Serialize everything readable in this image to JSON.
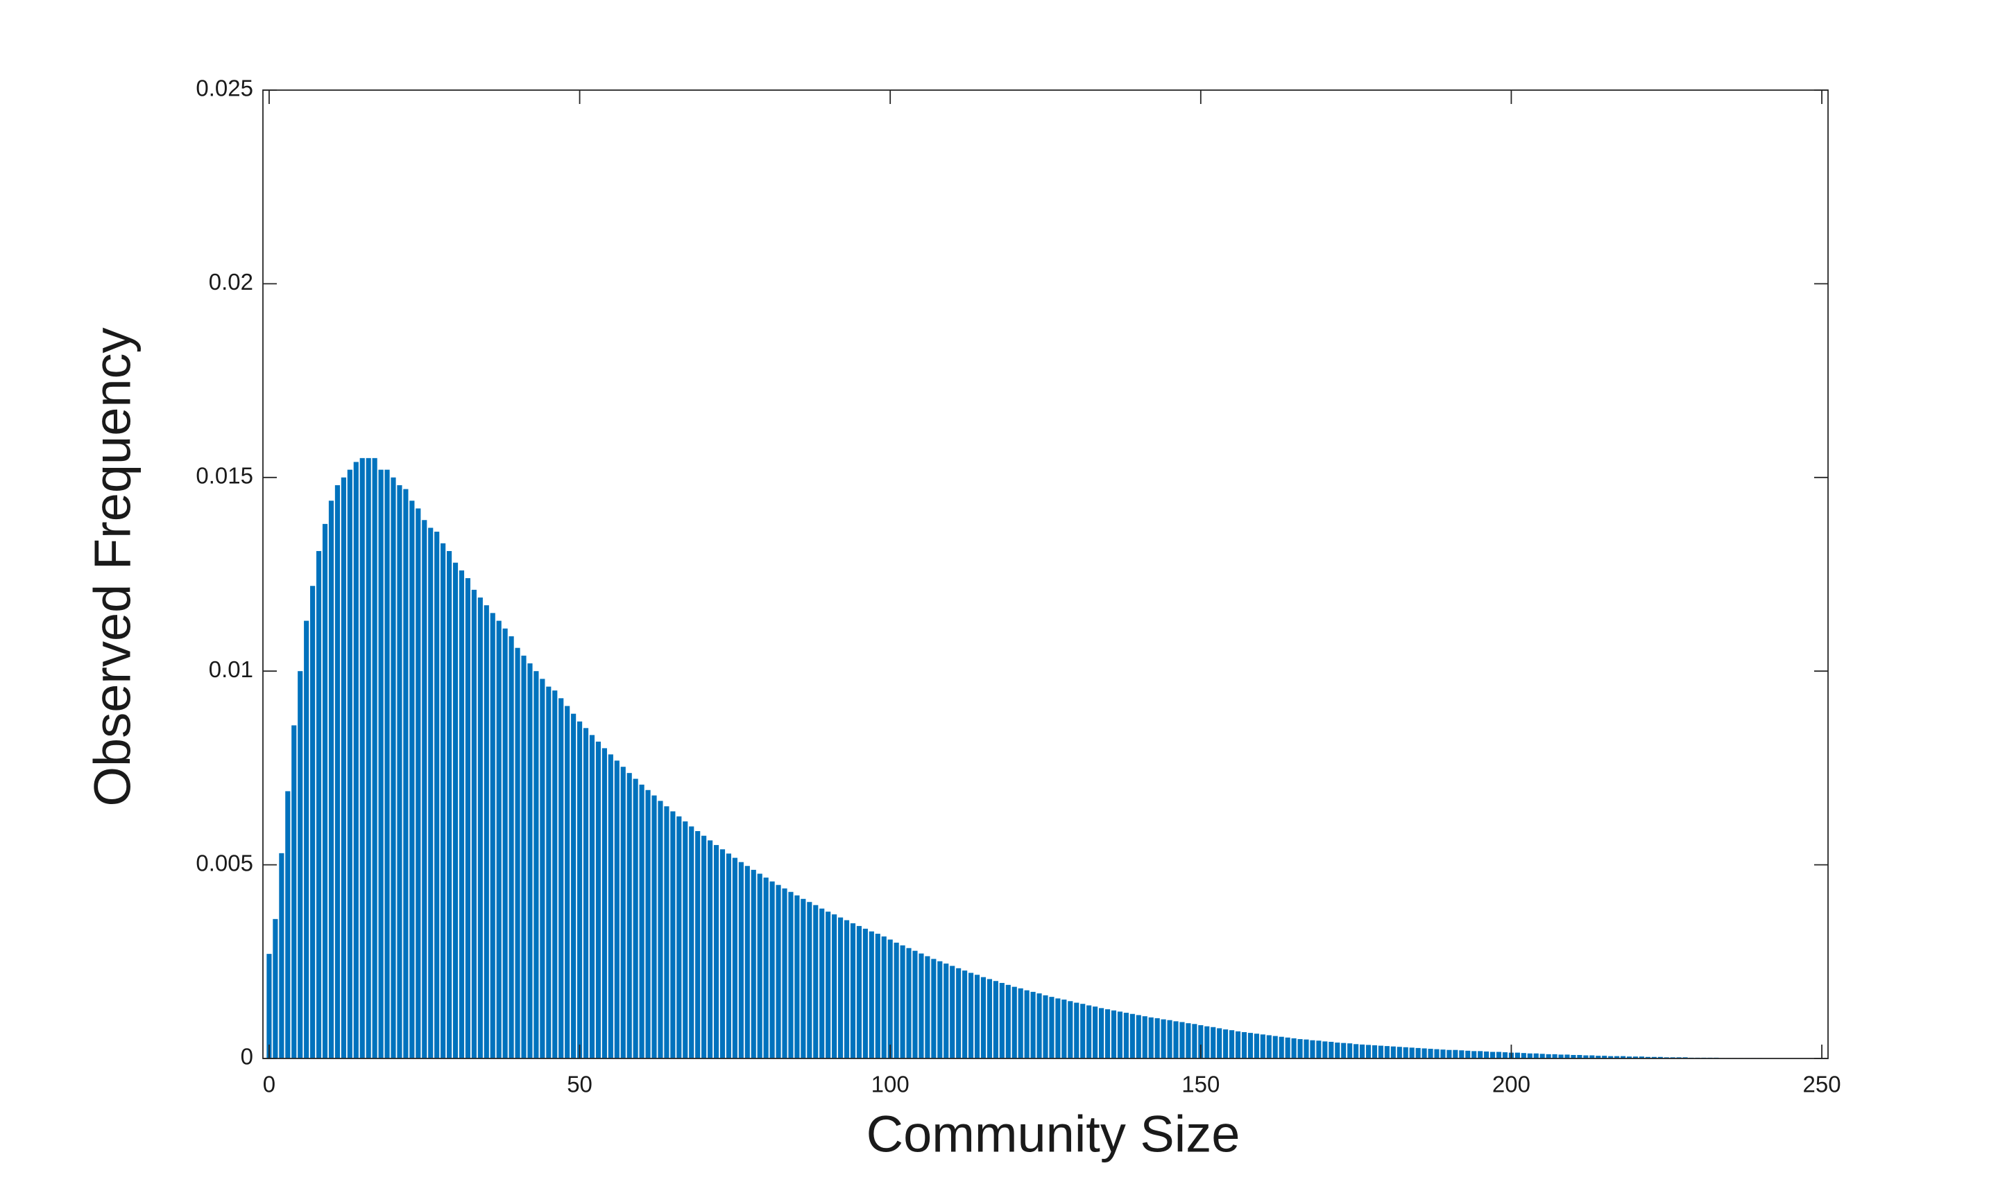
{
  "chart_data": {
    "type": "bar",
    "x_label": "Community Size",
    "y_label": "Observed Frequency",
    "color": "#0072bd",
    "xlim": [
      -1,
      251
    ],
    "ylim": [
      0,
      0.025
    ],
    "xticks": [
      0,
      50,
      100,
      150,
      200,
      250
    ],
    "yticks": [
      0,
      0.005,
      0.01,
      0.015,
      0.02,
      0.025
    ],
    "x": [
      0,
      1,
      2,
      3,
      4,
      5,
      6,
      7,
      8,
      9,
      10,
      11,
      12,
      13,
      14,
      15,
      16,
      17,
      18,
      19,
      20,
      21,
      22,
      23,
      24,
      25,
      26,
      27,
      28,
      29,
      30,
      31,
      32,
      33,
      34,
      35,
      36,
      37,
      38,
      39,
      40,
      41,
      42,
      43,
      44,
      45,
      46,
      47,
      48,
      49,
      50,
      51,
      52,
      53,
      54,
      55,
      56,
      57,
      58,
      59,
      60,
      61,
      62,
      63,
      64,
      65,
      66,
      67,
      68,
      69,
      70,
      71,
      72,
      73,
      74,
      75,
      76,
      77,
      78,
      79,
      80,
      81,
      82,
      83,
      84,
      85,
      86,
      87,
      88,
      89,
      90,
      91,
      92,
      93,
      94,
      95,
      96,
      97,
      98,
      99,
      100,
      101,
      102,
      103,
      104,
      105,
      106,
      107,
      108,
      109,
      110,
      111,
      112,
      113,
      114,
      115,
      116,
      117,
      118,
      119,
      120,
      121,
      122,
      123,
      124,
      125,
      126,
      127,
      128,
      129,
      130,
      131,
      132,
      133,
      134,
      135,
      136,
      137,
      138,
      139,
      140,
      141,
      142,
      143,
      144,
      145,
      146,
      147,
      148,
      149,
      150,
      151,
      152,
      153,
      154,
      155,
      156,
      157,
      158,
      159,
      160,
      161,
      162,
      163,
      164,
      165,
      166,
      167,
      168,
      169,
      170,
      171,
      172,
      173,
      174,
      175,
      176,
      177,
      178,
      179,
      180,
      181,
      182,
      183,
      184,
      185,
      186,
      187,
      188,
      189,
      190,
      191,
      192,
      193,
      194,
      195,
      196,
      197,
      198,
      199,
      200,
      201,
      202,
      203,
      204,
      205,
      206,
      207,
      208,
      209,
      210,
      211,
      212,
      213,
      214,
      215,
      216,
      217,
      218,
      219,
      220,
      221,
      222,
      223,
      224,
      225,
      226,
      227,
      228,
      229,
      230,
      231,
      232,
      233,
      234,
      235,
      236,
      237,
      238,
      239,
      240
    ],
    "values": [
      0.0027,
      0.0036,
      0.0053,
      0.0069,
      0.0086,
      0.01,
      0.0113,
      0.0122,
      0.0131,
      0.0138,
      0.0144,
      0.0148,
      0.015,
      0.0152,
      0.0154,
      0.0155,
      0.0155,
      0.0155,
      0.0152,
      0.0152,
      0.015,
      0.0148,
      0.0147,
      0.0144,
      0.0142,
      0.0139,
      0.0137,
      0.0136,
      0.0133,
      0.0131,
      0.0128,
      0.0126,
      0.0124,
      0.0121,
      0.0119,
      0.0117,
      0.0115,
      0.0113,
      0.0111,
      0.0109,
      0.0106,
      0.0104,
      0.0102,
      0.01,
      0.0098,
      0.0096,
      0.0095,
      0.0093,
      0.0091,
      0.0089,
      0.0087,
      0.00853,
      0.00835,
      0.00818,
      0.00801,
      0.00785,
      0.00769,
      0.00753,
      0.00737,
      0.00722,
      0.00707,
      0.00693,
      0.00679,
      0.00665,
      0.00651,
      0.00638,
      0.00625,
      0.00612,
      0.00599,
      0.00587,
      0.00575,
      0.00563,
      0.00551,
      0.0054,
      0.00529,
      0.00518,
      0.00507,
      0.00497,
      0.00487,
      0.00477,
      0.00467,
      0.00457,
      0.00448,
      0.00439,
      0.0043,
      0.00421,
      0.00412,
      0.00404,
      0.00396,
      0.00387,
      0.00379,
      0.00372,
      0.00364,
      0.00357,
      0.00349,
      0.00342,
      0.00335,
      0.00328,
      0.00322,
      0.00315,
      0.00307,
      0.00299,
      0.00292,
      0.00285,
      0.00278,
      0.00271,
      0.00264,
      0.00257,
      0.00251,
      0.00245,
      0.00239,
      0.00233,
      0.00227,
      0.00221,
      0.00216,
      0.0021,
      0.00205,
      0.002,
      0.00195,
      0.0019,
      0.00185,
      0.00181,
      0.00176,
      0.00172,
      0.00168,
      0.00163,
      0.00159,
      0.00155,
      0.00152,
      0.00148,
      0.00144,
      0.00141,
      0.00137,
      0.00134,
      0.0013,
      0.00127,
      0.00124,
      0.00121,
      0.00118,
      0.00115,
      0.00112,
      0.00109,
      0.00106,
      0.00104,
      0.00101,
      0.00099,
      0.00096,
      0.00094,
      0.00091,
      0.00089,
      0.00086,
      0.00083,
      0.00081,
      0.00078,
      0.00075,
      0.00073,
      0.0007,
      0.00068,
      0.00066,
      0.00064,
      0.00062,
      0.0006,
      0.00058,
      0.00056,
      0.00054,
      0.00052,
      0.0005,
      0.00049,
      0.00047,
      0.00046,
      0.00044,
      0.00043,
      0.00041,
      0.0004,
      0.00039,
      0.00037,
      0.00036,
      0.00035,
      0.00034,
      0.00033,
      0.00032,
      0.00031,
      0.0003,
      0.00029,
      0.00028,
      0.00027,
      0.00026,
      0.00025,
      0.00024,
      0.00023,
      0.00022,
      0.00022,
      0.00021,
      0.0002,
      0.00019,
      0.00019,
      0.00018,
      0.00017,
      0.00017,
      0.00016,
      0.00015,
      0.00015,
      0.00014,
      0.00013,
      0.00013,
      0.00012,
      0.00011,
      0.00011,
      0.0001,
      0.0001,
      9e-05,
      9e-05,
      8e-05,
      8e-05,
      7e-05,
      7e-05,
      6e-05,
      6e-05,
      6e-05,
      5e-05,
      5e-05,
      5e-05,
      4e-05,
      4e-05,
      4e-05,
      3e-05,
      3e-05,
      3e-05,
      3e-05,
      2e-05,
      2e-05,
      2e-05,
      2e-05,
      2e-05,
      1e-05,
      1e-05,
      1e-05,
      1e-05,
      1e-05,
      1e-05,
      1e-05
    ]
  }
}
